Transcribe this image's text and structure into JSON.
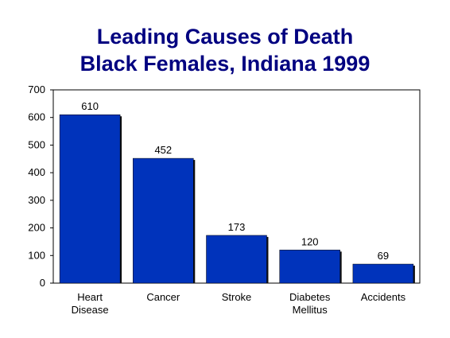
{
  "title_line1": "Leading Causes of Death",
  "title_line2": "Black Females, Indiana 1999",
  "colors": {
    "bar": "#0033BB",
    "bar_shadow": "#101010",
    "title": "#000080",
    "frame": "#000000"
  },
  "chart_data": {
    "type": "bar",
    "title": "Leading Causes of Death Black Females, Indiana 1999",
    "categories": [
      [
        "Heart",
        "Disease"
      ],
      [
        "Cancer"
      ],
      [
        "Stroke"
      ],
      [
        "Diabetes",
        "Mellitus"
      ],
      [
        "Accidents"
      ]
    ],
    "values": [
      610,
      452,
      173,
      120,
      69
    ],
    "data_labels": [
      "610",
      "452",
      "173",
      "120",
      "69"
    ],
    "ylim": [
      0,
      700
    ],
    "yticks": [
      0,
      100,
      200,
      300,
      400,
      500,
      600,
      700
    ],
    "xlabel": "",
    "ylabel": "",
    "grid": false,
    "legend": "none"
  }
}
